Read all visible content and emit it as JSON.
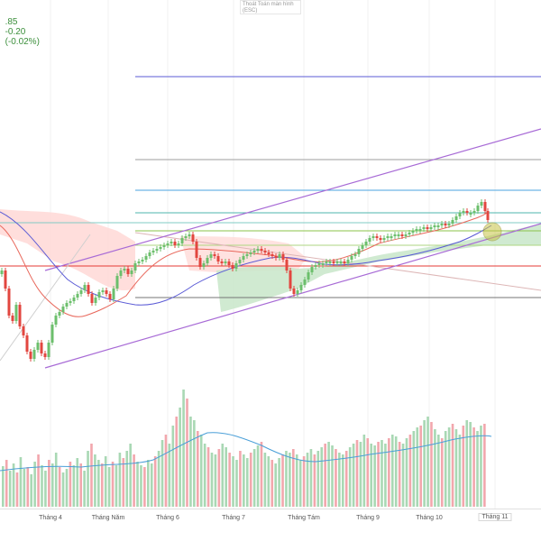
{
  "header": {
    "price_value": ".85",
    "change": "-0.20",
    "change_pct": "(-0.02%)",
    "price_color": "#3c8f3c"
  },
  "indicator_box": {
    "line1": "Thoát Toán màn hình",
    "line2": "(ESC)"
  },
  "colors": {
    "up_candle": "#6cbf6c",
    "down_candle": "#e2463f",
    "volume_up": "#a9d8b4",
    "volume_down": "#f2a7ad",
    "channel": "#a86bd6",
    "ma_fast": "#e8675b",
    "ma_slow": "#5b5bd6",
    "volume_ma": "#4a9fd8",
    "cloud_up": "#c8e6c9",
    "cloud_down": "#ffd6d3",
    "highlight_circle": "#c8c447"
  },
  "xaxis": {
    "labels": [
      "Tháng 4",
      "Tháng Năm",
      "Tháng 6",
      "Tháng 7",
      "Tháng Tám",
      "Tháng 9",
      "Tháng 10",
      "Tháng 11"
    ],
    "current_label": "Tháng 11"
  },
  "icons": {
    "highlight": "circle-marker-icon"
  }
}
